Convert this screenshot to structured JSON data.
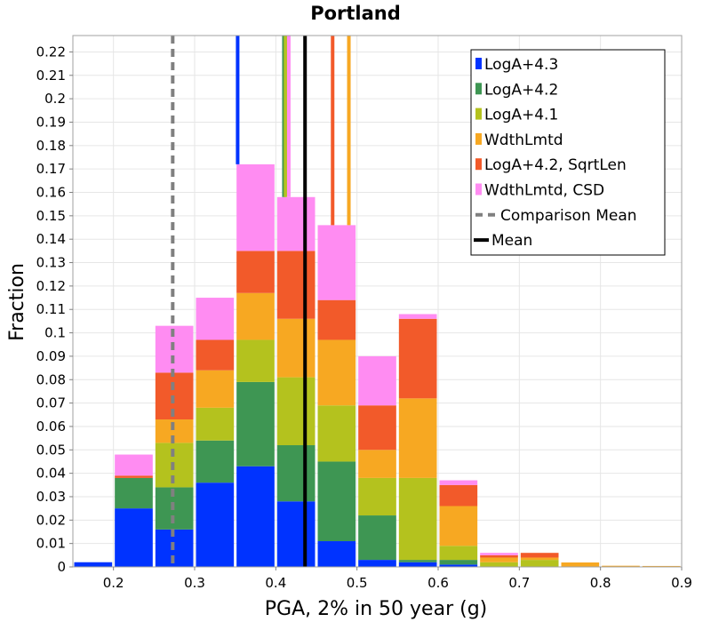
{
  "chart_data": {
    "type": "bar",
    "title": "Portland",
    "xlabel": "PGA, 2% in 50 year (g)",
    "ylabel": "Fraction",
    "xlim": [
      0.15,
      0.9
    ],
    "ylim": [
      0,
      0.227
    ],
    "bin_width": 0.05,
    "x_ticks": [
      "0.2",
      "0.3",
      "0.4",
      "0.5",
      "0.6",
      "0.7",
      "0.8",
      "0.9"
    ],
    "y_ticks": [
      "0",
      "0.01",
      "0.02",
      "0.03",
      "0.04",
      "0.05",
      "0.06",
      "0.07",
      "0.08",
      "0.09",
      "0.1",
      "0.11",
      "0.12",
      "0.13",
      "0.14",
      "0.15",
      "0.16",
      "0.17",
      "0.18",
      "0.19",
      "0.2",
      "0.21",
      "0.22"
    ],
    "bin_centers": [
      0.175,
      0.225,
      0.275,
      0.325,
      0.375,
      0.425,
      0.475,
      0.525,
      0.575,
      0.625,
      0.675,
      0.725,
      0.775,
      0.825,
      0.875
    ],
    "series": [
      {
        "name": "LogA+4.3",
        "color": "#0033ff",
        "values": [
          0.002,
          0.025,
          0.016,
          0.036,
          0.043,
          0.028,
          0.011,
          0.003,
          0.002,
          0.001,
          0.0,
          0.0,
          0.0,
          0.0,
          0.0
        ],
        "mean": 0.353
      },
      {
        "name": "LogA+4.2",
        "color": "#3e9653",
        "values": [
          0.0,
          0.013,
          0.018,
          0.018,
          0.036,
          0.024,
          0.034,
          0.019,
          0.001,
          0.002,
          0.0,
          0.0,
          0.0,
          0.0,
          0.0
        ],
        "mean": 0.41
      },
      {
        "name": "LogA+4.1",
        "color": "#b4c21e",
        "values": [
          0.0,
          0.0,
          0.019,
          0.014,
          0.018,
          0.029,
          0.024,
          0.016,
          0.035,
          0.006,
          0.002,
          0.003,
          0.0,
          0.0,
          0.0
        ],
        "mean": 0.412
      },
      {
        "name": "WdthLmtd",
        "color": "#f7a822",
        "values": [
          0.0,
          0.0,
          0.01,
          0.016,
          0.02,
          0.025,
          0.028,
          0.012,
          0.034,
          0.017,
          0.002,
          0.001,
          0.0019,
          0.0005,
          0.0004
        ],
        "mean": 0.49
      },
      {
        "name": "LogA+4.2, SqrtLen",
        "color": "#f25a2a",
        "values": [
          0.0,
          0.001,
          0.02,
          0.013,
          0.018,
          0.029,
          0.017,
          0.019,
          0.034,
          0.009,
          0.001,
          0.002,
          0.0,
          0.0,
          0.0
        ],
        "mean": 0.47
      },
      {
        "name": "WdthLmtd, CSD",
        "color": "#ff8cf2",
        "values": [
          0.0,
          0.009,
          0.02,
          0.018,
          0.037,
          0.023,
          0.032,
          0.021,
          0.002,
          0.002,
          0.001,
          0.0,
          0.0,
          0.0,
          0.0
        ],
        "mean": 0.416
      }
    ],
    "reference_lines": [
      {
        "name": "Comparison Mean",
        "x": 0.273,
        "color": "#808080",
        "style": "dashed"
      },
      {
        "name": "Mean",
        "x": 0.436,
        "color": "#000000",
        "style": "solid"
      }
    ],
    "grid": true,
    "legend_position": "top-right"
  }
}
